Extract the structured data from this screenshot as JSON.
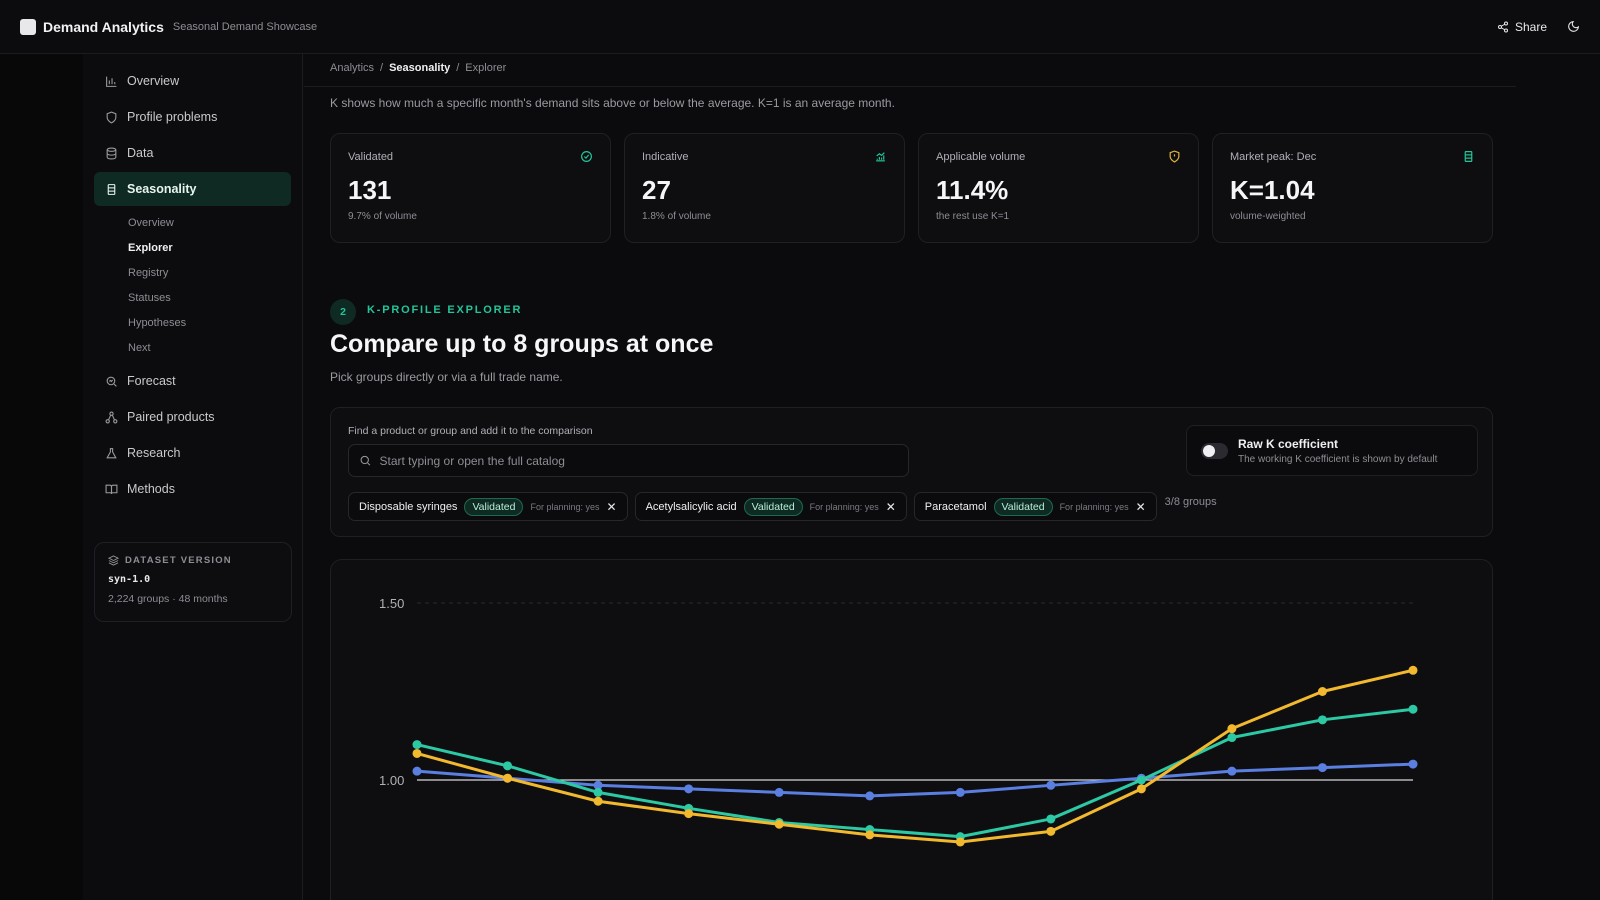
{
  "app": {
    "title": "Demand Analytics",
    "subtitle": "Seasonal Demand Showcase",
    "share_label": "Share"
  },
  "sidebar": {
    "items": [
      {
        "label": "Overview",
        "icon": "bar-chart-icon"
      },
      {
        "label": "Profile problems",
        "icon": "shield-icon"
      },
      {
        "label": "Data",
        "icon": "database-icon"
      },
      {
        "label": "Seasonality",
        "icon": "calendar-icon",
        "active": true
      },
      {
        "label": "Forecast",
        "icon": "search-chart-icon"
      },
      {
        "label": "Paired products",
        "icon": "network-icon"
      },
      {
        "label": "Research",
        "icon": "flask-icon"
      },
      {
        "label": "Methods",
        "icon": "book-icon"
      }
    ],
    "subitems": [
      "Overview",
      "Explorer",
      "Registry",
      "Statuses",
      "Hypotheses",
      "Next"
    ],
    "current_subitem": "Explorer",
    "dataset": {
      "heading": "DATASET VERSION",
      "version": "syn-1.0",
      "meta": "2,224 groups · 48 months"
    }
  },
  "breadcrumb": [
    "Analytics",
    "Seasonality",
    "Explorer"
  ],
  "intro": "K shows how much a specific month's demand sits above or below the average. K=1 is an average month.",
  "kpis": [
    {
      "label": "Validated",
      "value": "131",
      "sub": "9.7% of volume",
      "icon": "check-circle-icon",
      "color": "#22c59a"
    },
    {
      "label": "Indicative",
      "value": "27",
      "sub": "1.8% of volume",
      "icon": "trend-up-icon",
      "color": "#22c59a"
    },
    {
      "label": "Applicable volume",
      "value": "11.4%",
      "sub": "the rest use K=1",
      "icon": "shield-warning-icon",
      "color": "#e0b43a"
    },
    {
      "label": "Market peak: Dec",
      "value": "K=1.04",
      "sub": "volume-weighted",
      "icon": "calendar-icon",
      "color": "#22c59a"
    }
  ],
  "section": {
    "step": "2",
    "eyebrow": "K-PROFILE EXPLORER",
    "title": "Compare up to 8 groups at once",
    "subtitle": "Pick groups directly or via a full trade name."
  },
  "picker": {
    "label": "Find a product or group and add it to the comparison",
    "placeholder": "Start typing or open the full catalog",
    "toggle_title": "Raw K coefficient",
    "toggle_desc": "The working K coefficient is shown by default",
    "toggle_on": false,
    "chips": [
      {
        "name": "Disposable syringes",
        "status": "Validated",
        "plan": "For planning: yes"
      },
      {
        "name": "Acetylsalicylic acid",
        "status": "Validated",
        "plan": "For planning: yes"
      },
      {
        "name": "Paracetamol",
        "status": "Validated",
        "plan": "For planning: yes"
      }
    ],
    "count": "3/8 groups"
  },
  "chart_data": {
    "type": "line",
    "y_ticks": [
      "1.50",
      "1.00"
    ],
    "ylim": [
      0.6,
      1.5
    ],
    "x": [
      1,
      2,
      3,
      4,
      5,
      6,
      7,
      8,
      9,
      10,
      11,
      12
    ],
    "grid": "dashed at 1.50, solid baseline at 1.00",
    "series": [
      {
        "color": "#5b7fe0",
        "values": [
          1.025,
          1.005,
          0.985,
          0.975,
          0.965,
          0.955,
          0.965,
          0.985,
          1.005,
          1.025,
          1.035,
          1.045
        ]
      },
      {
        "color": "#2cc9a4",
        "values": [
          1.1,
          1.04,
          0.965,
          0.92,
          0.88,
          0.86,
          0.84,
          0.89,
          1.0,
          1.12,
          1.17,
          1.2
        ]
      },
      {
        "color": "#f2b92e",
        "values": [
          1.075,
          1.005,
          0.94,
          0.905,
          0.875,
          0.845,
          0.825,
          0.855,
          0.975,
          1.145,
          1.25,
          1.31
        ]
      }
    ]
  }
}
